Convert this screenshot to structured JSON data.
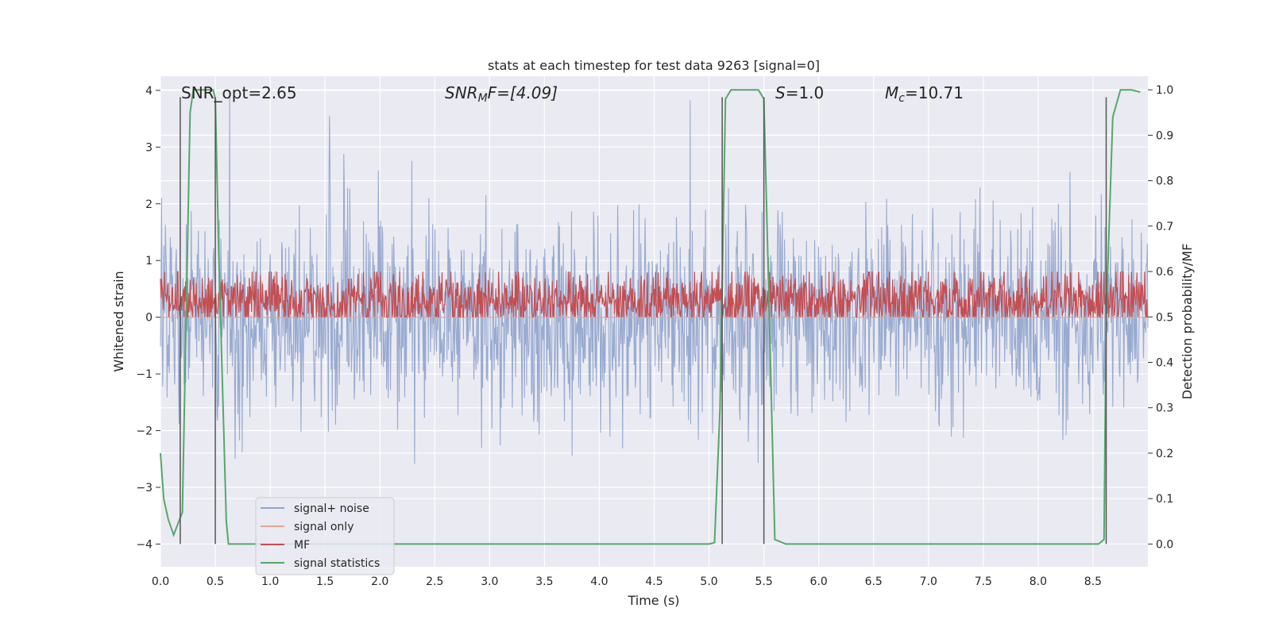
{
  "chart_data": {
    "type": "line",
    "title": "stats at each timestep for test data 9263 [signal=0]",
    "xlabel": "Time (s)",
    "ylabel_left": "Whitened strain",
    "ylabel_right": "Detection probability/MF",
    "xlim": [
      0,
      9.0
    ],
    "ylim_left": [
      -4.4,
      4.25
    ],
    "ylim_right": [
      -0.05,
      1.03
    ],
    "xticks": [
      0.0,
      0.5,
      1.0,
      1.5,
      2.0,
      2.5,
      3.0,
      3.5,
      4.0,
      4.5,
      5.0,
      5.5,
      6.0,
      6.5,
      7.0,
      7.5,
      8.0,
      8.5
    ],
    "xtick_labels": [
      "0.0",
      "0.5",
      "1.0",
      "1.5",
      "2.0",
      "2.5",
      "3.0",
      "3.5",
      "4.0",
      "4.5",
      "5.0",
      "5.5",
      "6.0",
      "6.5",
      "7.0",
      "7.5",
      "8.0",
      "8.5"
    ],
    "yticks_left": [
      4,
      3,
      2,
      1,
      0,
      -1,
      -2,
      -3,
      -4
    ],
    "ytick_labels_left": [
      "4",
      "3",
      "2",
      "1",
      "0",
      "−1",
      "−2",
      "−3",
      "−4"
    ],
    "yticks_right": [
      1.0,
      0.9,
      0.8,
      0.7,
      0.6,
      0.5,
      0.4,
      0.3,
      0.2,
      0.1,
      0.0
    ],
    "ytick_labels_right": [
      "1.0",
      "0.9",
      "0.8",
      "0.7",
      "0.6",
      "0.5",
      "0.4",
      "0.3",
      "0.2",
      "0.1",
      "0.0"
    ],
    "grid": true,
    "background": "#eaeaf2",
    "annotations": {
      "snr_opt": "SNR_opt=2.65",
      "snr_mf_base": "SNR",
      "snr_mf_sub": "M",
      "snr_mf_rest": "F=[4.09]",
      "s_base": "S",
      "s_rest": "=1.0",
      "mc_base": "M",
      "mc_sub": "c",
      "mc_rest": "=10.71"
    },
    "vertical_markers_x": [
      0.18,
      0.5,
      5.12,
      5.5,
      8.62
    ],
    "vertical_marker_range_left": [
      -4.0,
      3.88
    ],
    "legend": {
      "placement": "lower-left",
      "entries": [
        "signal+ noise",
        "signal only",
        "MF",
        "signal statistics"
      ]
    },
    "series": [
      {
        "name": "signal+ noise",
        "axis": "left",
        "color": "#8fa3cc",
        "description_values": "whitened strain noise, approx range -4.0 to 3.9",
        "envelope_std": 0.85,
        "n_points": 1800,
        "seed": 9263
      },
      {
        "name": "signal only",
        "axis": "left",
        "color": "#e8a48a",
        "values_x": [
          0.0,
          9.0
        ],
        "values_y": [
          0.0,
          0.0
        ]
      },
      {
        "name": "MF",
        "axis": "right",
        "color": "#c44e52",
        "mean": 0.535,
        "spread": 0.035,
        "min": 0.5,
        "max": 0.6,
        "n_points": 1800,
        "seed": 42
      },
      {
        "name": "signal statistics",
        "axis": "right",
        "color": "#55a868",
        "x": [
          0.0,
          0.03,
          0.07,
          0.12,
          0.2,
          0.27,
          0.3,
          0.35,
          0.4,
          0.48,
          0.5,
          0.53,
          0.6,
          0.62,
          0.7,
          1.0,
          2.0,
          3.0,
          4.0,
          5.0,
          5.05,
          5.1,
          5.15,
          5.2,
          5.45,
          5.5,
          5.55,
          5.6,
          5.7,
          6.0,
          7.0,
          8.0,
          8.55,
          8.6,
          8.62,
          8.68,
          8.75,
          8.85,
          8.93
        ],
        "y": [
          0.2,
          0.1,
          0.055,
          0.02,
          0.07,
          0.95,
          1.0,
          1.0,
          1.0,
          1.0,
          0.98,
          0.65,
          0.05,
          0.0,
          0.0,
          0.0,
          0.0,
          0.0,
          0.0,
          0.0,
          0.003,
          0.3,
          0.98,
          1.0,
          1.0,
          0.98,
          0.5,
          0.01,
          0.0,
          0.0,
          0.0,
          0.0,
          0.0,
          0.01,
          0.5,
          0.94,
          1.0,
          1.0,
          0.995
        ]
      }
    ]
  }
}
